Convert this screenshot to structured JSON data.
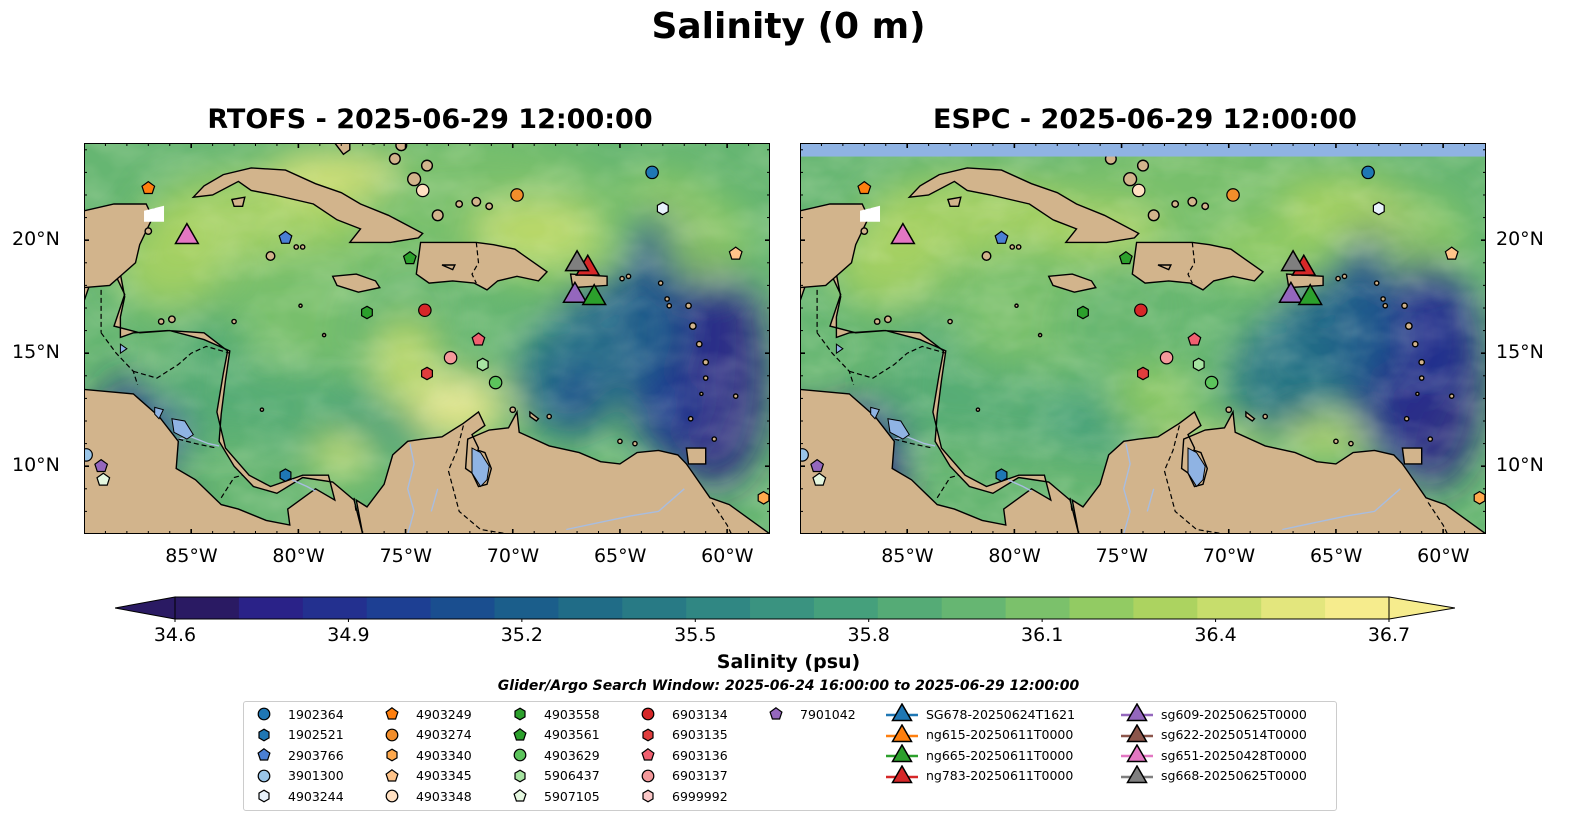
{
  "title": "Salinity (0 m)",
  "panels": [
    {
      "title": "RTOFS - 2025-06-29 12:00:00",
      "model": "rtofs"
    },
    {
      "title": "ESPC - 2025-06-29 12:00:00",
      "model": "espc"
    }
  ],
  "map": {
    "lon_range": [
      -90,
      -58
    ],
    "lat_range": [
      7,
      24.3
    ],
    "lon_ticks": [
      "85°W",
      "80°W",
      "75°W",
      "70°W",
      "65°W",
      "60°W"
    ],
    "lat_ticks": [
      "20°N",
      "15°N",
      "10°N"
    ],
    "land_color": "#d2b48c",
    "ocean_color": "#6fbf72",
    "lake_color": "#8fb3e3"
  },
  "colorbar": {
    "label": "Salinity (psu)",
    "ticks": [
      "34.6",
      "34.9",
      "35.2",
      "35.5",
      "35.8",
      "36.1",
      "36.4",
      "36.7"
    ],
    "colors": [
      "#2a1a63",
      "#2a2288",
      "#23308f",
      "#1d3f93",
      "#1a4e8f",
      "#1b5e8b",
      "#206c87",
      "#287a85",
      "#308783",
      "#3a9380",
      "#45a07c",
      "#55ab76",
      "#66b672",
      "#7bc16b",
      "#92cb63",
      "#acd360",
      "#c7dd6c",
      "#e3e67d",
      "#f6ec8d"
    ]
  },
  "search_window": "Glider/Argo Search Window: 2025-06-24 16:00:00 to 2025-06-29 12:00:00",
  "legend": {
    "argo": [
      {
        "id": "1902364",
        "marker": "circle",
        "color": "#1f77b4"
      },
      {
        "id": "1902521",
        "marker": "hexagon",
        "color": "#1f77b4"
      },
      {
        "id": "2903766",
        "marker": "pentagon",
        "color": "#4a7fd4"
      },
      {
        "id": "3901300",
        "marker": "circle",
        "color": "#9ac5e8"
      },
      {
        "id": "4903244",
        "marker": "hexagon",
        "color": "#e8f2fb"
      },
      {
        "id": "4903249",
        "marker": "pentagon",
        "color": "#ff7f0e"
      },
      {
        "id": "4903274",
        "marker": "circle",
        "color": "#f28e2b"
      },
      {
        "id": "4903340",
        "marker": "hexagon",
        "color": "#ffa94d"
      },
      {
        "id": "4903345",
        "marker": "pentagon",
        "color": "#ffc48a"
      },
      {
        "id": "4903348",
        "marker": "circle",
        "color": "#ffe0c2"
      },
      {
        "id": "4903558",
        "marker": "hexagon",
        "color": "#2ca02c"
      },
      {
        "id": "4903561",
        "marker": "pentagon",
        "color": "#2ca02c"
      },
      {
        "id": "4903629",
        "marker": "circle",
        "color": "#5cc45c"
      },
      {
        "id": "5906437",
        "marker": "hexagon",
        "color": "#a6e3a1"
      },
      {
        "id": "5907105",
        "marker": "pentagon",
        "color": "#e5f7e0"
      },
      {
        "id": "6903134",
        "marker": "circle",
        "color": "#d62728"
      },
      {
        "id": "6903135",
        "marker": "hexagon",
        "color": "#e03d3d"
      },
      {
        "id": "6903136",
        "marker": "pentagon",
        "color": "#f06070"
      },
      {
        "id": "6903137",
        "marker": "circle",
        "color": "#f4999b"
      },
      {
        "id": "6999992",
        "marker": "hexagon",
        "color": "#fbc8c8"
      },
      {
        "id": "7901042",
        "marker": "pentagon",
        "color": "#9467bd"
      }
    ],
    "gliders": [
      {
        "id": "SG678-20250624T1621",
        "color": "#1f77b4"
      },
      {
        "id": "ng615-20250611T0000",
        "color": "#ff7f0e"
      },
      {
        "id": "ng665-20250611T0000",
        "color": "#2ca02c"
      },
      {
        "id": "ng783-20250611T0000",
        "color": "#d62728"
      },
      {
        "id": "sg609-20250625T0000",
        "color": "#9467bd"
      },
      {
        "id": "sg622-20250514T0000",
        "color": "#8c564b"
      },
      {
        "id": "sg651-20250428T0000",
        "color": "#e377c2"
      },
      {
        "id": "sg668-20250625T0000",
        "color": "#7f7f7f"
      }
    ]
  },
  "argo_positions": [
    {
      "id": "1902364",
      "lon": -63.5,
      "lat": 23.0
    },
    {
      "id": "4903244",
      "lon": -63.0,
      "lat": 21.4
    },
    {
      "id": "4903249",
      "lon": -87.0,
      "lat": 22.3
    },
    {
      "id": "4903348",
      "lon": -74.2,
      "lat": 22.2
    },
    {
      "id": "4903274",
      "lon": -69.8,
      "lat": 22.0
    },
    {
      "id": "2903766",
      "lon": -80.6,
      "lat": 20.1
    },
    {
      "id": "4903561",
      "lon": -74.8,
      "lat": 19.2
    },
    {
      "id": "4903345",
      "lon": -59.6,
      "lat": 19.4
    },
    {
      "id": "4903558",
      "lon": -76.8,
      "lat": 16.8
    },
    {
      "id": "6903134",
      "lon": -74.1,
      "lat": 16.9
    },
    {
      "id": "6903136",
      "lon": -71.6,
      "lat": 15.6
    },
    {
      "id": "6903137",
      "lon": -72.9,
      "lat": 14.8
    },
    {
      "id": "5906437",
      "lon": -71.4,
      "lat": 14.5
    },
    {
      "id": "6903135",
      "lon": -74.0,
      "lat": 14.1
    },
    {
      "id": "4903629",
      "lon": -70.8,
      "lat": 13.7
    },
    {
      "id": "1902521",
      "lon": -80.6,
      "lat": 9.6
    },
    {
      "id": "3901300",
      "lon": -89.9,
      "lat": 10.5
    },
    {
      "id": "7901042",
      "lon": -89.2,
      "lat": 10.0
    },
    {
      "id": "5907105",
      "lon": -89.1,
      "lat": 9.4
    },
    {
      "id": "4903340",
      "lon": -58.3,
      "lat": 8.6
    }
  ],
  "glider_positions": [
    {
      "id": "sg651-20250428T0000",
      "lon": -85.2,
      "lat": 20.2
    },
    {
      "id": "ng783-20250611T0000",
      "lon": -66.5,
      "lat": 18.8
    },
    {
      "id": "sg668-20250625T0000",
      "lon": -67.0,
      "lat": 19.0
    },
    {
      "id": "sg609-20250625T0000",
      "lon": -67.1,
      "lat": 17.6
    },
    {
      "id": "ng665-20250611T0000",
      "lon": -66.2,
      "lat": 17.5
    }
  ]
}
